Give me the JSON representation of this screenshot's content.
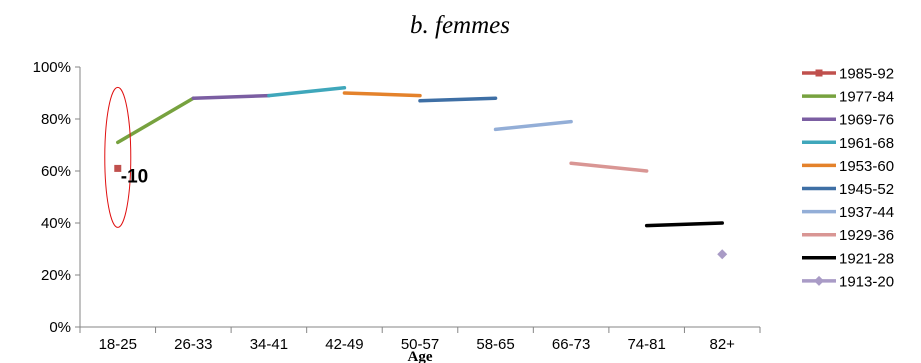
{
  "chart_data": {
    "type": "line",
    "title": "b. femmes",
    "xlabel": "Age",
    "ylabel": "",
    "categories": [
      "18-25",
      "26-33",
      "34-41",
      "42-49",
      "50-57",
      "58-65",
      "66-73",
      "74-81",
      "82+"
    ],
    "y_ticks": [
      "0%",
      "20%",
      "40%",
      "60%",
      "80%",
      "100%"
    ],
    "ylim": [
      0,
      100
    ],
    "grid": false,
    "legend_position": "right",
    "series": [
      {
        "name": "1985-92",
        "color": "#c0504d",
        "marker": "square",
        "points": [
          {
            "x": "18-25",
            "y": 61
          }
        ]
      },
      {
        "name": "1977-84",
        "color": "#77a23f",
        "points": [
          {
            "x": "18-25",
            "y": 71
          },
          {
            "x": "26-33",
            "y": 88
          }
        ]
      },
      {
        "name": "1969-76",
        "color": "#7b5ea2",
        "points": [
          {
            "x": "26-33",
            "y": 88
          },
          {
            "x": "34-41",
            "y": 89
          }
        ]
      },
      {
        "name": "1961-68",
        "color": "#3fa7bb",
        "points": [
          {
            "x": "34-41",
            "y": 89
          },
          {
            "x": "42-49",
            "y": 92
          }
        ]
      },
      {
        "name": "1953-60",
        "color": "#e4822b",
        "points": [
          {
            "x": "42-49",
            "y": 90
          },
          {
            "x": "50-57",
            "y": 89
          }
        ]
      },
      {
        "name": "1945-52",
        "color": "#3e6fa5",
        "points": [
          {
            "x": "50-57",
            "y": 87
          },
          {
            "x": "58-65",
            "y": 88
          }
        ]
      },
      {
        "name": "1937-44",
        "color": "#93aed7",
        "points": [
          {
            "x": "58-65",
            "y": 76
          },
          {
            "x": "66-73",
            "y": 79
          }
        ]
      },
      {
        "name": "1929-36",
        "color": "#d99694",
        "points": [
          {
            "x": "66-73",
            "y": 63
          },
          {
            "x": "74-81",
            "y": 60
          }
        ]
      },
      {
        "name": "1921-28",
        "color": "#000000",
        "points": [
          {
            "x": "74-81",
            "y": 39
          },
          {
            "x": "82+",
            "y": 40
          }
        ]
      },
      {
        "name": "1913-20",
        "color": "#a99bc6",
        "marker": "diamond",
        "points": [
          {
            "x": "82+",
            "y": 28
          }
        ]
      }
    ],
    "annotations": [
      {
        "text": "-10",
        "target": "1985-92 at 18-25",
        "highlight": "red ellipse"
      }
    ]
  }
}
